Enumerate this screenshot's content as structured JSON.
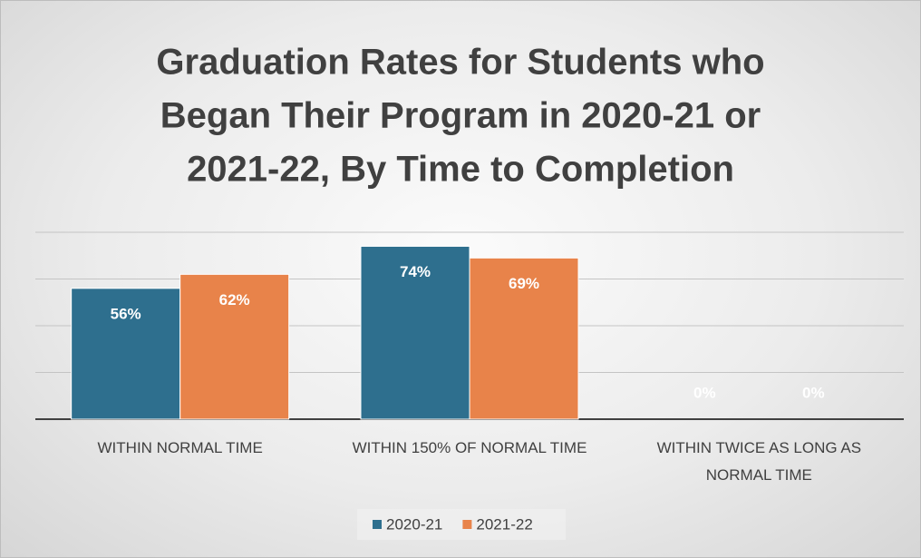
{
  "chart_data": {
    "type": "bar",
    "title": [
      "Graduation Rates for Students who",
      "Began Their Program in 2020-21 or",
      "2021-22, By Time to Completion"
    ],
    "categories": [
      "WITHIN NORMAL TIME",
      "WITHIN 150% OF NORMAL TIME",
      "WITHIN TWICE AS LONG AS NORMAL TIME"
    ],
    "series": [
      {
        "name": "2020-21",
        "color": "#2e6f8e",
        "values": [
          56,
          74,
          0
        ],
        "value_labels": [
          "56%",
          "74%",
          "0%"
        ]
      },
      {
        "name": "2021-22",
        "color": "#e8834a",
        "values": [
          62,
          69,
          0
        ],
        "value_labels": [
          "62%",
          "69%",
          "0%"
        ]
      }
    ],
    "ylim": [
      0,
      80
    ],
    "yticks": [
      0,
      20,
      40,
      60,
      80
    ],
    "grid": true,
    "legend": "bottom"
  }
}
